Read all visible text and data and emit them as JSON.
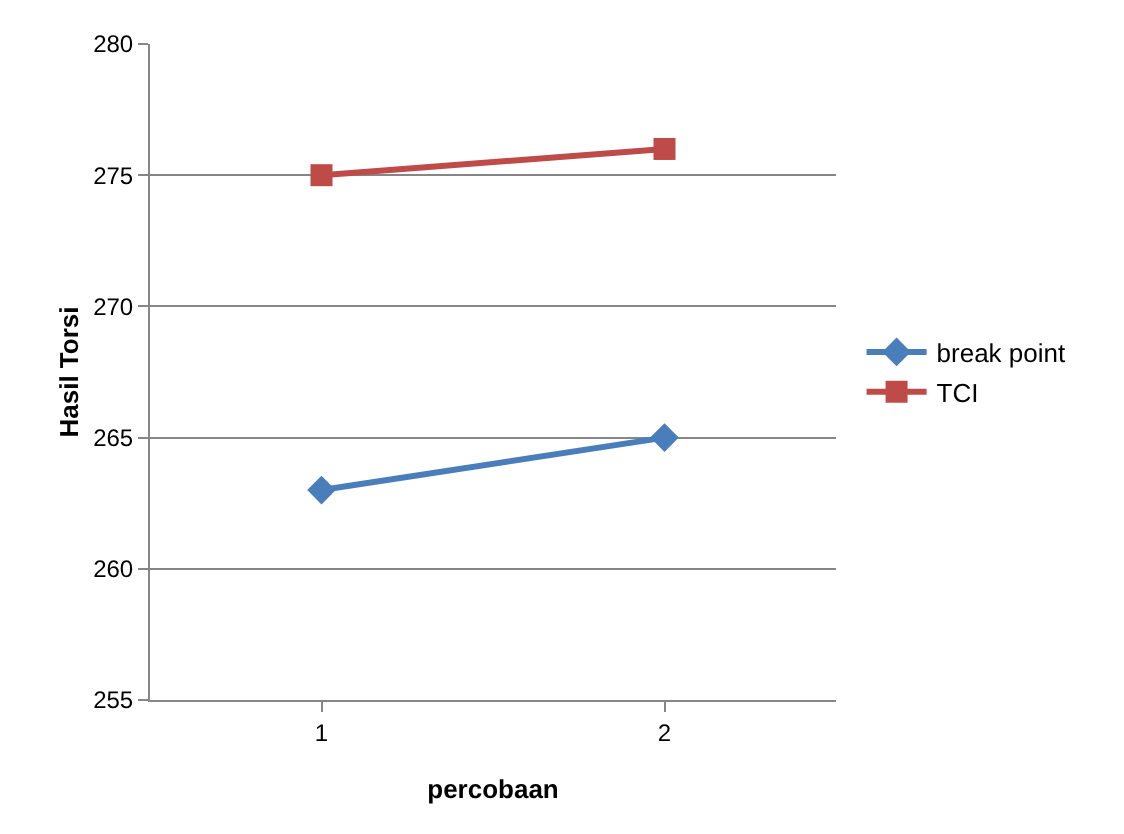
{
  "chart_data": {
    "type": "line",
    "xlabel": "percobaan",
    "ylabel": "Hasil Torsi",
    "categories": [
      "1",
      "2"
    ],
    "series": [
      {
        "name": "break point",
        "color": "#4a7ebb",
        "marker": "diamond",
        "values": [
          263,
          265
        ]
      },
      {
        "name": "TCI",
        "color": "#be4b48",
        "marker": "square",
        "values": [
          275,
          276
        ]
      }
    ],
    "ylim": [
      255,
      280
    ],
    "yticks": [
      255,
      260,
      265,
      270,
      275,
      280
    ],
    "grid": "y",
    "legend": "right",
    "line_style": "solid"
  }
}
